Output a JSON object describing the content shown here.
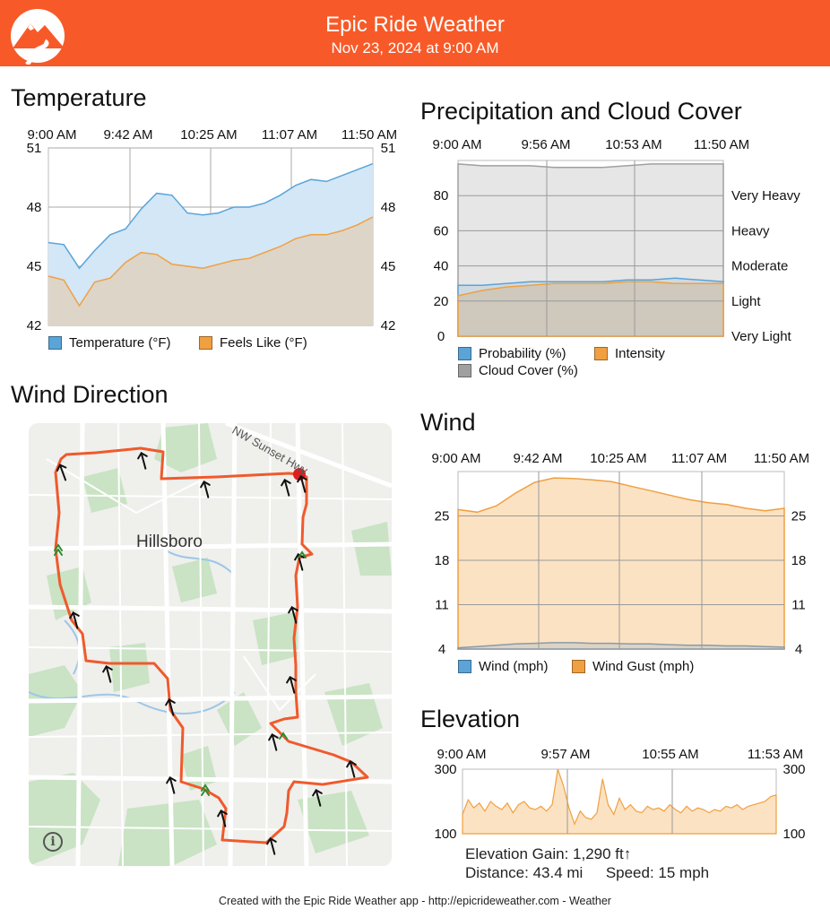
{
  "header": {
    "title": "Epic Ride Weather",
    "date": "Nov 23, 2024 at 9:00 AM",
    "color": "#f75a28"
  },
  "temperature": {
    "title": "Temperature",
    "x_ticks": [
      "9:00 AM",
      "9:42 AM",
      "10:25 AM",
      "11:07 AM",
      "11:50 AM"
    ],
    "y_ticks": [
      "51",
      "48",
      "45",
      "42"
    ],
    "legend": [
      "Temperature (°F)",
      "Feels Like (°F)"
    ],
    "chart_data": {
      "type": "area",
      "ylim": [
        42,
        51
      ],
      "series": [
        {
          "name": "Temperature (°F)",
          "color": "#5aa4d8",
          "values": [
            46.2,
            46.1,
            44.9,
            45.8,
            46.6,
            46.9,
            47.9,
            48.7,
            48.6,
            47.7,
            47.6,
            47.7,
            48.0,
            48.0,
            48.2,
            48.6,
            49.1,
            49.4,
            49.3,
            49.6,
            49.9,
            50.2
          ]
        },
        {
          "name": "Feels Like (°F)",
          "color": "#f0a040",
          "values": [
            44.5,
            44.3,
            43.0,
            44.2,
            44.4,
            45.2,
            45.7,
            45.6,
            45.1,
            45.0,
            44.9,
            45.1,
            45.3,
            45.4,
            45.7,
            46.0,
            46.4,
            46.6,
            46.6,
            46.8,
            47.1,
            47.5
          ]
        }
      ]
    }
  },
  "precipitation": {
    "title": "Precipitation and Cloud Cover",
    "x_ticks": [
      "9:00 AM",
      "9:56 AM",
      "10:53 AM",
      "11:50 AM"
    ],
    "y_ticks": [
      "80",
      "60",
      "40",
      "20",
      "0"
    ],
    "right_labels": [
      "Very Heavy",
      "Heavy",
      "Moderate",
      "Light",
      "Very Light"
    ],
    "legend": [
      "Probability (%)",
      "Intensity",
      "Cloud Cover (%)"
    ],
    "chart_data": {
      "type": "area",
      "ylim": [
        0,
        100
      ],
      "series": [
        {
          "name": "Cloud Cover (%)",
          "color": "#a0a0a0",
          "values": [
            98,
            97,
            97,
            97,
            96,
            96,
            96,
            97,
            98,
            98,
            98,
            98
          ]
        },
        {
          "name": "Probability (%)",
          "color": "#5aa4d8",
          "values": [
            29,
            29,
            30,
            31,
            31,
            31,
            31,
            32,
            32,
            33,
            32,
            31
          ]
        },
        {
          "name": "Intensity",
          "color": "#f0a040",
          "values": [
            23,
            26,
            28,
            29,
            30,
            30,
            30,
            31,
            31,
            30,
            30,
            30
          ]
        }
      ]
    }
  },
  "wind_direction": {
    "title": "Wind Direction",
    "place_label": "Hillsboro",
    "road_label": "NW Sunset Hwy",
    "info_label": "i"
  },
  "wind": {
    "title": "Wind",
    "x_ticks": [
      "9:00 AM",
      "9:42 AM",
      "10:25 AM",
      "11:07 AM",
      "11:50 AM"
    ],
    "y_ticks": [
      "25",
      "18",
      "11",
      "4"
    ],
    "legend": [
      "Wind (mph)",
      "Wind Gust (mph)"
    ],
    "chart_data": {
      "type": "area",
      "ylim": [
        4,
        32
      ],
      "series": [
        {
          "name": "Wind Gust (mph)",
          "color": "#f0a040",
          "values": [
            26.0,
            25.6,
            26.6,
            28.6,
            30.3,
            31.0,
            30.9,
            30.7,
            30.4,
            29.7,
            29.0,
            28.3,
            27.6,
            27.1,
            26.8,
            26.2,
            25.8,
            26.2
          ]
        },
        {
          "name": "Wind (mph)",
          "color": "#5aa4d8",
          "values": [
            4.2,
            4.4,
            4.6,
            4.8,
            4.9,
            5.0,
            5.0,
            4.9,
            4.9,
            4.8,
            4.8,
            4.7,
            4.6,
            4.6,
            4.5,
            4.5,
            4.4,
            4.3
          ]
        }
      ]
    }
  },
  "elevation": {
    "title": "Elevation",
    "x_ticks": [
      "9:00 AM",
      "9:57 AM",
      "10:55 AM",
      "11:53 AM"
    ],
    "y_ticks": [
      "300",
      "100"
    ],
    "chart_data": {
      "type": "area",
      "ylim": [
        100,
        300
      ],
      "series": [
        {
          "name": "Elevation",
          "color": "#f0a040",
          "values": [
            160,
            205,
            180,
            195,
            170,
            200,
            185,
            175,
            195,
            165,
            190,
            200,
            180,
            175,
            185,
            170,
            190,
            300,
            250,
            180,
            130,
            170,
            150,
            145,
            165,
            270,
            190,
            160,
            210,
            175,
            190,
            170,
            165,
            185,
            175,
            180,
            170,
            190,
            175,
            165,
            185,
            170,
            180,
            175,
            165,
            175,
            170,
            185,
            180,
            190,
            175,
            185,
            190,
            195,
            200,
            215,
            220
          ]
        }
      ]
    },
    "gain": "Elevation Gain: 1,290 ft",
    "gain_arrow": "↑",
    "distance": "Distance: 43.4 mi",
    "speed": "Speed: 15 mph"
  },
  "footer": "Created with the Epic Ride Weather app - http://epicrideweather.com -  Weather"
}
